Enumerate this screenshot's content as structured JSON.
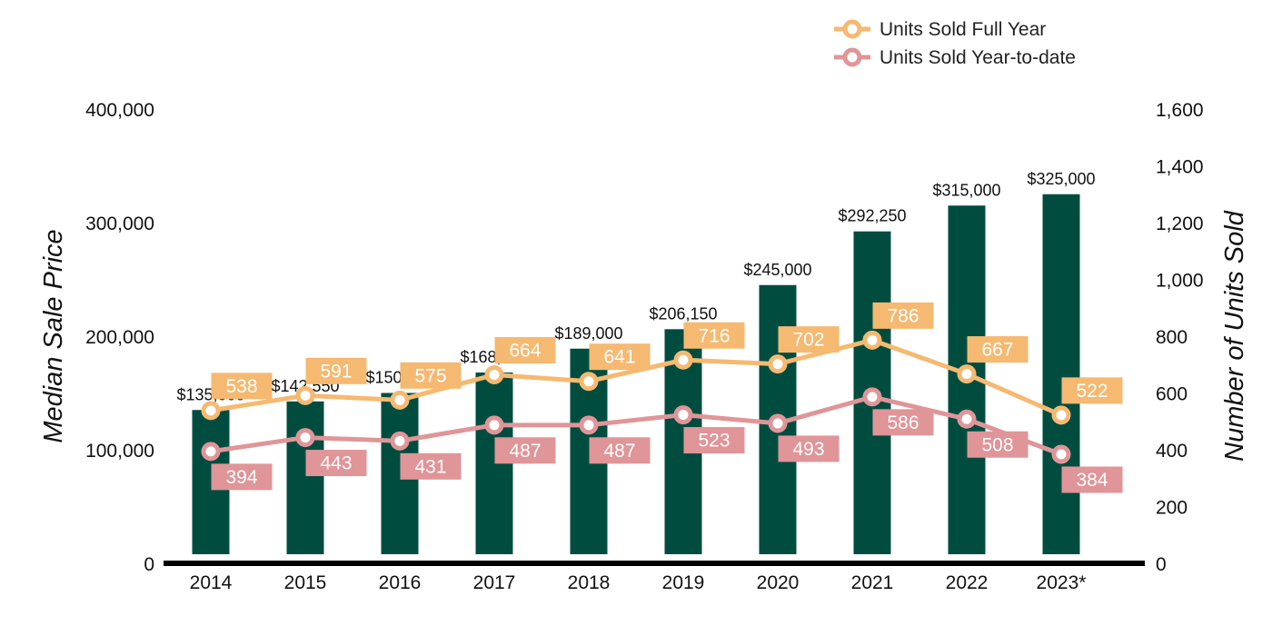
{
  "chart_data": {
    "type": "bar",
    "categories": [
      "2014",
      "2015",
      "2016",
      "2017",
      "2018",
      "2019",
      "2020",
      "2021",
      "2022",
      "2023*"
    ],
    "bar_series": {
      "name": "",
      "values": [
        135000,
        142550,
        150000,
        168000,
        189000,
        206150,
        245000,
        292250,
        315000,
        325000
      ],
      "value_labels": [
        "$135,000",
        "$142,550",
        "$150,000",
        "$168,000",
        "$189,000",
        "$206,150",
        "$245,000",
        "$292,250",
        "$315,000",
        "$325,000"
      ],
      "color": "#004d40",
      "axis": "left"
    },
    "line_series": [
      {
        "name": "Units Sold Full Year",
        "values": [
          538,
          591,
          575,
          664,
          641,
          716,
          702,
          786,
          667,
          522
        ],
        "color": "#f5b971",
        "axis": "right",
        "label_position": "above"
      },
      {
        "name": "Units Sold Year-to-date",
        "values": [
          394,
          443,
          431,
          487,
          487,
          523,
          493,
          586,
          508,
          384
        ],
        "color": "#e09598",
        "axis": "right",
        "label_position": "below"
      }
    ],
    "ylabel": "Median Sale Price",
    "y2label": "Number of Units Sold",
    "ylim": [
      0,
      400000
    ],
    "y2lim": [
      0,
      1600
    ],
    "yticks": [
      "0",
      "100,000",
      "200,000",
      "300,000",
      "400,000"
    ],
    "y2ticks": [
      "0",
      "200",
      "400",
      "600",
      "800",
      "1,000",
      "1,200",
      "1,400",
      "1,600"
    ],
    "grid": false,
    "legend_position": "top-right"
  }
}
